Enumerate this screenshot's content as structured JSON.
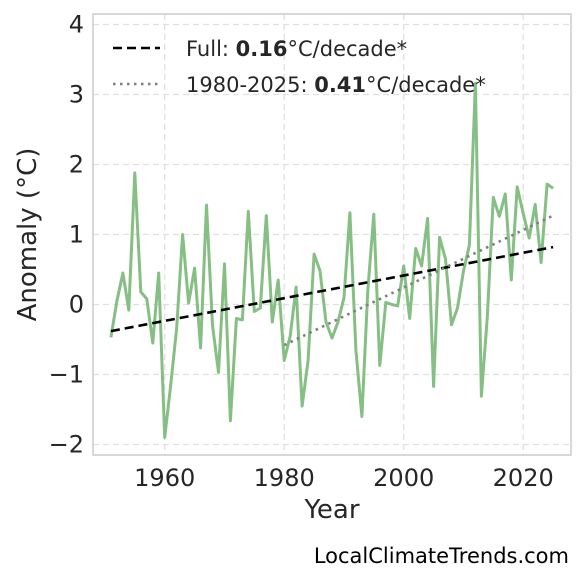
{
  "chart_data": {
    "type": "line",
    "xlabel": "Year",
    "ylabel": "Anomaly (°C)",
    "xlim": [
      1948,
      2028
    ],
    "ylim": [
      -2.15,
      4.15
    ],
    "xticks": [
      1960,
      1980,
      2000,
      2020
    ],
    "yticks": [
      -2,
      -1,
      0,
      1,
      2,
      3,
      4
    ],
    "ytick_labels": [
      "−2",
      "−1",
      "0",
      "1",
      "2",
      "3",
      "4"
    ],
    "grid": true,
    "legend_position": "top-left",
    "series": [
      {
        "color": "#86bf84",
        "x": [
          1951,
          1952,
          1953,
          1954,
          1955,
          1956,
          1957,
          1958,
          1959,
          1960,
          1961,
          1962,
          1963,
          1964,
          1965,
          1966,
          1967,
          1968,
          1969,
          1970,
          1971,
          1972,
          1973,
          1974,
          1975,
          1976,
          1977,
          1978,
          1979,
          1980,
          1981,
          1982,
          1983,
          1984,
          1985,
          1986,
          1987,
          1988,
          1989,
          1990,
          1991,
          1992,
          1993,
          1994,
          1995,
          1996,
          1997,
          1998,
          1999,
          2000,
          2001,
          2002,
          2003,
          2004,
          2005,
          2006,
          2007,
          2008,
          2009,
          2010,
          2011,
          2012,
          2013,
          2014,
          2015,
          2016,
          2017,
          2018,
          2019,
          2020,
          2021,
          2022,
          2023,
          2024,
          2025
        ],
        "y": [
          -0.47,
          0.05,
          0.45,
          -0.08,
          1.88,
          0.18,
          0.08,
          -0.55,
          0.45,
          -1.9,
          -1.15,
          -0.35,
          1.0,
          0.02,
          0.52,
          -0.62,
          1.42,
          -0.3,
          -0.97,
          0.58,
          -1.66,
          -0.2,
          -0.22,
          1.33,
          -0.1,
          -0.05,
          1.27,
          -0.25,
          0.35,
          -0.8,
          -0.45,
          0.25,
          -1.45,
          -0.8,
          0.72,
          0.48,
          -0.25,
          -0.48,
          -0.25,
          0.1,
          1.31,
          -0.65,
          -1.6,
          0.2,
          1.29,
          -0.87,
          0.03,
          0.0,
          -0.02,
          0.55,
          -0.2,
          0.8,
          0.55,
          1.23,
          -1.17,
          0.96,
          0.65,
          -0.29,
          -0.05,
          0.47,
          0.85,
          3.16,
          -1.31,
          -0.18,
          1.53,
          1.26,
          1.58,
          0.35,
          1.68,
          1.3,
          0.95,
          1.43,
          0.6,
          1.72,
          1.66
        ]
      }
    ],
    "trends": [
      {
        "style": "dashed",
        "color": "#000000",
        "x": [
          1951,
          2025
        ],
        "y": [
          -0.38,
          0.82
        ],
        "label_prefix": "Full: ",
        "label_value": "0.16",
        "label_suffix": "°C/decade*"
      },
      {
        "style": "dotted",
        "color": "#7f7f7f",
        "x": [
          1980,
          2025
        ],
        "y": [
          -0.58,
          1.27
        ],
        "label_prefix": "1980-2025: ",
        "label_value": "0.41",
        "label_suffix": "°C/decade*"
      }
    ]
  },
  "watermark": "LocalClimateTrends.com"
}
